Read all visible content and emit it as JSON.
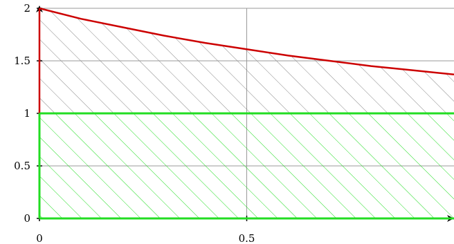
{
  "chart_data": {
    "type": "area",
    "title": "",
    "xlabel": "",
    "ylabel": "",
    "xlim": [
      0,
      1
    ],
    "ylim": [
      0,
      2
    ],
    "x_ticks": [
      {
        "value": 0,
        "label": "0"
      },
      {
        "value": 0.5,
        "label": "0.5"
      }
    ],
    "y_ticks": [
      {
        "value": 0,
        "label": "0"
      },
      {
        "value": 0.5,
        "label": "0.5"
      },
      {
        "value": 1,
        "label": "1"
      },
      {
        "value": 1.5,
        "label": "1.5"
      },
      {
        "value": 2,
        "label": "2"
      }
    ],
    "grid": true,
    "series": [
      {
        "x": [
          0,
          0.1,
          0.2,
          0.3,
          0.4,
          0.5,
          0.6,
          0.7,
          0.8,
          0.9,
          1.0
        ],
        "y": [
          2.0,
          1.9,
          1.82,
          1.74,
          1.67,
          1.61,
          1.55,
          1.5,
          1.45,
          1.41,
          1.37
        ],
        "color": "#cc0000",
        "fill": "hatched",
        "fill_color": "#888888",
        "fill_between": [
          1,
          "curve"
        ]
      },
      {
        "x": [
          0,
          1
        ],
        "y": [
          1,
          1
        ],
        "color": "#22dd22",
        "fill": "hatched",
        "fill_color": "#22dd22",
        "fill_between": [
          0,
          1
        ]
      }
    ],
    "axis_color": "#000000",
    "grid_color": "#999999"
  }
}
